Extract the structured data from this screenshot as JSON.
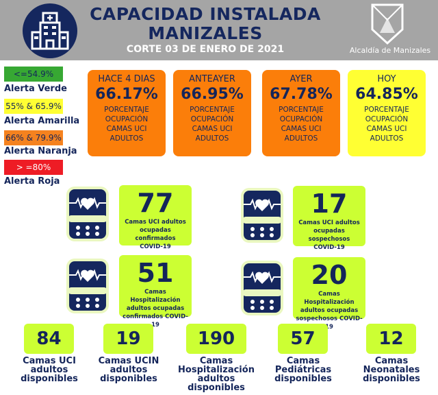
{
  "header": {
    "title_line1": "CAPACIDAD INSTALADA",
    "title_line2": "MANIZALES",
    "subtitle": "CORTE 03 DE ENERO DE 2021",
    "org": "Alcaldía de Manizales",
    "logo_icon": "hospital-icon"
  },
  "legend": [
    {
      "range": "<=54.9%",
      "label": "Alerta Verde",
      "color": "#37a833"
    },
    {
      "range": "55% & 65.9%",
      "label": "Alerta Amarilla",
      "color": "#ffff33"
    },
    {
      "range": "66% & 79.9%",
      "label": "Alerta Naranja",
      "color": "#f5821f"
    },
    {
      "range": "> =80%",
      "label": "Alerta Roja",
      "color": "#ee1c25"
    }
  ],
  "occupancy": [
    {
      "period": "HACE 4 DIAS",
      "value": "66.17%",
      "desc": [
        "PORCENTAJE",
        "OCUPACIÓN",
        "CAMAS UCI",
        "ADULTOS"
      ],
      "color": "#fb7e0a"
    },
    {
      "period": "ANTEAYER",
      "value": "66.95%",
      "desc": [
        "PORCENTAJE",
        "OCUPACIÓN",
        "CAMAS UCI",
        "ADULTOS"
      ],
      "color": "#fb7e0a"
    },
    {
      "period": "AYER",
      "value": "67.78%",
      "desc": [
        "PORCENTAJE",
        "OCUPACIÓN",
        "CAMAS UCI",
        "ADULTOS"
      ],
      "color": "#fb7e0a"
    },
    {
      "period": "HOY",
      "value": "64.85%",
      "desc": [
        "PORCENTAJE",
        "OCUPACIÓN",
        "CAMAS UCI",
        "ADULTOS"
      ],
      "color": "#ffff33"
    }
  ],
  "stats": [
    {
      "value": "77",
      "desc": [
        "Camas UCI adultos",
        "ocupadas confirmados",
        "COVID-19"
      ]
    },
    {
      "value": "17",
      "desc": [
        "Camas UCI adultos",
        "ocupadas sospechosos",
        "COVID-19"
      ]
    },
    {
      "value": "51",
      "desc": [
        "Camas  Hospitalización",
        "adultos ocupadas",
        "confirmados COVID-19"
      ]
    },
    {
      "value": "20",
      "desc": [
        "Camas  Hospitalización",
        "adultos ocupadas",
        "sospechosos COVID-19"
      ]
    }
  ],
  "available": [
    {
      "value": "84",
      "desc": [
        "Camas UCI",
        "adultos",
        "disponibles"
      ]
    },
    {
      "value": "19",
      "desc": [
        "Camas UCIN",
        "adultos",
        "disponibles"
      ]
    },
    {
      "value": "190",
      "desc": [
        "Camas",
        "Hospitalización",
        "adultos",
        "disponibles"
      ]
    },
    {
      "value": "57",
      "desc": [
        "Camas",
        "Pediátricas",
        "disponibles"
      ]
    },
    {
      "value": "12",
      "desc": [
        "Camas",
        "Neonatales",
        "disponibles"
      ]
    }
  ]
}
